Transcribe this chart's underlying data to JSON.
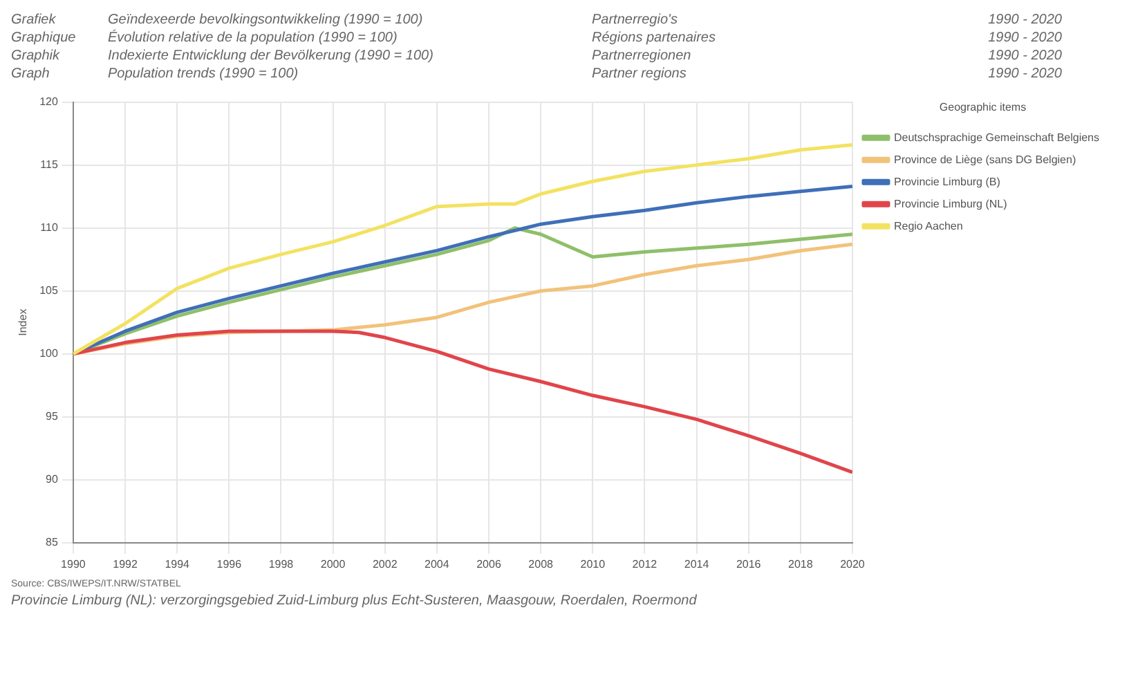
{
  "chart_data": {
    "type": "line",
    "annotations": [
      "Grafiek",
      "Geïndexeerde bevolkingsontwikkeling (1990 = 100)",
      "Partnerregio's",
      "1990 - 2020",
      "Graphique",
      "Évolution relative de la population (1990 = 100)",
      "Régions partenaires",
      "1990 - 2020",
      "Graphik",
      "Indexierte Entwicklung der Bevölkerung (1990 = 100)",
      "Partnerregionen",
      "1990 - 2020",
      "Graph",
      "Population trends (1990 = 100)",
      "Partner regions",
      "1990 - 2020",
      "Source: CBS/IWEPS/IT.NRW/STATBEL",
      "Provincie Limburg (NL): verzorgingsgebied Zuid-Limburg plus Echt-Susteren, Maasgouw, Roerdalen, Roermond"
    ],
    "ylabel": "Index",
    "legend_title": "Geographic items",
    "legend": "right",
    "grid": true,
    "marker": "none",
    "line_style": "solid",
    "xlim": [
      1990,
      2020
    ],
    "xticks": [
      1990,
      1992,
      1994,
      1996,
      1998,
      2000,
      2002,
      2004,
      2006,
      2008,
      2010,
      2012,
      2014,
      2016,
      2018,
      2020
    ],
    "ylim": [
      85,
      120
    ],
    "yticks": [
      85,
      90,
      95,
      100,
      105,
      110,
      115,
      120
    ],
    "series": [
      {
        "name": "Deutschsprachige Gemeinschaft Belgiens",
        "color": "#8fbf6a",
        "x": [
          1990,
          1992,
          1994,
          1996,
          1998,
          2000,
          2002,
          2004,
          2006,
          2007,
          2008,
          2010,
          2012,
          2014,
          2016,
          2018,
          2020
        ],
        "values": [
          100,
          101.6,
          103.0,
          104.1,
          105.1,
          106.1,
          107.0,
          107.9,
          109.0,
          110.0,
          109.5,
          107.7,
          108.1,
          108.4,
          108.7,
          109.1,
          109.5
        ]
      },
      {
        "name": "Province de Liège (sans DG Belgien)",
        "color": "#f2c27a",
        "x": [
          1990,
          1992,
          1994,
          1996,
          1998,
          2000,
          2002,
          2004,
          2006,
          2008,
          2010,
          2012,
          2014,
          2016,
          2018,
          2020
        ],
        "values": [
          100,
          100.8,
          101.4,
          101.7,
          101.8,
          101.9,
          102.3,
          102.9,
          104.1,
          105.0,
          105.4,
          106.3,
          107.0,
          107.5,
          108.2,
          108.7
        ]
      },
      {
        "name": "Provincie Limburg (B)",
        "color": "#3f6fb8",
        "x": [
          1990,
          1992,
          1994,
          1996,
          1998,
          2000,
          2002,
          2004,
          2006,
          2008,
          2010,
          2012,
          2014,
          2016,
          2018,
          2020
        ],
        "values": [
          100,
          101.8,
          103.3,
          104.4,
          105.4,
          106.4,
          107.3,
          108.2,
          109.3,
          110.3,
          110.9,
          111.4,
          112.0,
          112.5,
          112.9,
          113.3
        ]
      },
      {
        "name": "Provincie Limburg (NL)",
        "color": "#e0454a",
        "x": [
          1990,
          1992,
          1994,
          1996,
          1998,
          2000,
          2001,
          2002,
          2004,
          2006,
          2008,
          2010,
          2012,
          2014,
          2016,
          2018,
          2020
        ],
        "values": [
          100,
          100.9,
          101.5,
          101.8,
          101.8,
          101.8,
          101.7,
          101.3,
          100.2,
          98.8,
          97.8,
          96.7,
          95.8,
          94.8,
          93.5,
          92.1,
          90.6
        ]
      },
      {
        "name": "Regio Aachen",
        "color": "#f3e261",
        "x": [
          1990,
          1992,
          1994,
          1996,
          1998,
          2000,
          2002,
          2004,
          2006,
          2007,
          2008,
          2010,
          2012,
          2014,
          2016,
          2018,
          2020
        ],
        "values": [
          100,
          102.4,
          105.2,
          106.8,
          107.9,
          108.9,
          110.2,
          111.7,
          111.9,
          111.9,
          112.7,
          113.7,
          114.5,
          115.0,
          115.5,
          116.2,
          116.6
        ]
      }
    ]
  }
}
